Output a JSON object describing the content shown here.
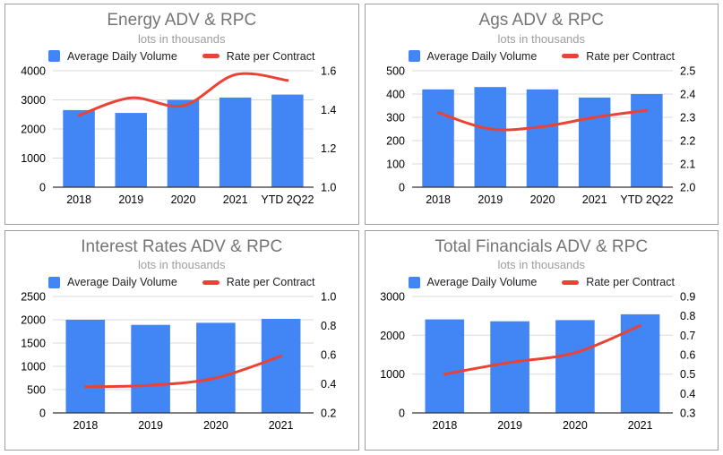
{
  "colors": {
    "bar": "#4285F4",
    "line": "#EA4335",
    "grid": "#D9D9D9",
    "baseline": "#333333",
    "axis_text": "#000000",
    "title": "#757575",
    "subtitle": "#9E9E9E",
    "legend_text": "#202124",
    "panel_border": "#9E9E9E"
  },
  "legend": {
    "bar_label": "Average Daily Volume",
    "line_label": "Rate per Contract"
  },
  "chart_data": [
    {
      "id": "energy",
      "type": "combo_bar_line",
      "title": "Energy ADV & RPC",
      "subtitle": "lots in thousands",
      "categories": [
        "2018",
        "2019",
        "2020",
        "2021",
        "YTD 2Q22"
      ],
      "series": [
        {
          "name": "Average Daily Volume",
          "type": "bar",
          "axis": "left",
          "values": [
            2650,
            2550,
            3000,
            3080,
            3180
          ]
        },
        {
          "name": "Rate per Contract",
          "type": "line",
          "axis": "right",
          "values": [
            1.37,
            1.46,
            1.42,
            1.58,
            1.55
          ]
        }
      ],
      "left_axis": {
        "min": 0,
        "max": 4000,
        "ticks": [
          0,
          1000,
          2000,
          3000,
          4000
        ]
      },
      "right_axis": {
        "min": 1.0,
        "max": 1.6,
        "ticks": [
          1.0,
          1.2,
          1.4,
          1.6
        ],
        "decimals": 1
      },
      "grid": true,
      "legend_position": "top"
    },
    {
      "id": "ags",
      "type": "combo_bar_line",
      "title": "Ags ADV & RPC",
      "subtitle": "lots in thousands",
      "categories": [
        "2018",
        "2019",
        "2020",
        "2021",
        "YTD 2Q22"
      ],
      "series": [
        {
          "name": "Average Daily Volume",
          "type": "bar",
          "axis": "left",
          "values": [
            420,
            430,
            420,
            385,
            400
          ]
        },
        {
          "name": "Rate per Contract",
          "type": "line",
          "axis": "right",
          "values": [
            2.32,
            2.25,
            2.26,
            2.3,
            2.33
          ]
        }
      ],
      "left_axis": {
        "min": 0,
        "max": 500,
        "ticks": [
          0,
          100,
          200,
          300,
          400,
          500
        ]
      },
      "right_axis": {
        "min": 2.0,
        "max": 2.5,
        "ticks": [
          2.0,
          2.1,
          2.2,
          2.3,
          2.4,
          2.5
        ],
        "decimals": 1
      },
      "grid": true,
      "legend_position": "top"
    },
    {
      "id": "interest-rates",
      "type": "combo_bar_line",
      "title": "Interest Rates ADV & RPC",
      "subtitle": "lots in thousands",
      "categories": [
        "2018",
        "2019",
        "2020",
        "2021"
      ],
      "series": [
        {
          "name": "Average Daily Volume",
          "type": "bar",
          "axis": "left",
          "values": [
            2000,
            1890,
            1935,
            2020
          ]
        },
        {
          "name": "Rate per Contract",
          "type": "line",
          "axis": "right",
          "values": [
            0.38,
            0.39,
            0.44,
            0.59
          ]
        }
      ],
      "left_axis": {
        "min": 0,
        "max": 2500,
        "ticks": [
          0,
          500,
          1000,
          1500,
          2000,
          2500
        ]
      },
      "right_axis": {
        "min": 0.2,
        "max": 1.0,
        "ticks": [
          0.2,
          0.4,
          0.6,
          0.8,
          1.0
        ],
        "decimals": 1
      },
      "grid": true,
      "legend_position": "top"
    },
    {
      "id": "total-financials",
      "type": "combo_bar_line",
      "title": "Total Financials ADV & RPC",
      "subtitle": "lots in thousands",
      "categories": [
        "2018",
        "2019",
        "2020",
        "2021"
      ],
      "series": [
        {
          "name": "Average Daily Volume",
          "type": "bar",
          "axis": "left",
          "values": [
            2410,
            2360,
            2390,
            2540
          ]
        },
        {
          "name": "Rate per Contract",
          "type": "line",
          "axis": "right",
          "values": [
            0.5,
            0.56,
            0.61,
            0.75
          ]
        }
      ],
      "left_axis": {
        "min": 0,
        "max": 3000,
        "ticks": [
          0,
          1000,
          2000,
          3000
        ]
      },
      "right_axis": {
        "min": 0.3,
        "max": 0.9,
        "ticks": [
          0.3,
          0.4,
          0.5,
          0.6,
          0.7,
          0.8,
          0.9
        ],
        "decimals": 1
      },
      "grid": true,
      "legend_position": "top"
    }
  ]
}
